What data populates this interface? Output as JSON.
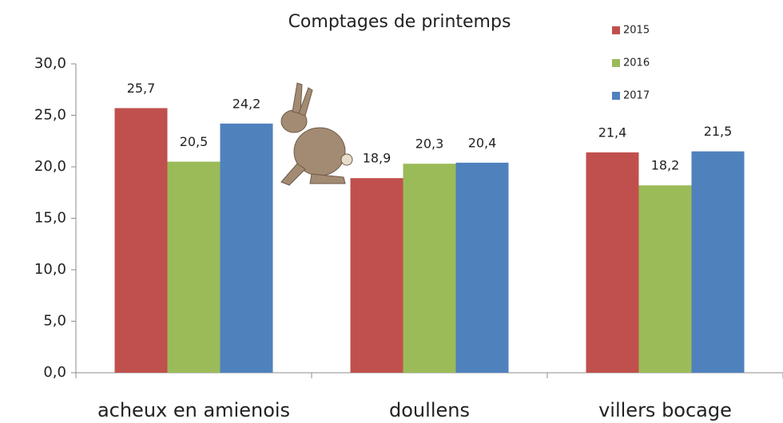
{
  "chart_data": {
    "type": "bar",
    "title": "Comptages de printemps",
    "categories": [
      "acheux en amienois",
      "doullens",
      "villers bocage"
    ],
    "series": [
      {
        "name": "2015",
        "color": "#c0504d",
        "values": [
          25.7,
          18.9,
          21.4
        ],
        "value_labels": [
          "25,7",
          "18,9",
          "21,4"
        ]
      },
      {
        "name": "2016",
        "color": "#9bbb59",
        "values": [
          20.5,
          20.3,
          18.2
        ],
        "value_labels": [
          "20,5",
          "20,3",
          "18,2"
        ]
      },
      {
        "name": "2017",
        "color": "#4f81bd",
        "values": [
          24.2,
          20.4,
          21.5
        ],
        "value_labels": [
          "24,2",
          "20,4",
          "21,5"
        ]
      }
    ],
    "ylim": [
      0,
      30
    ],
    "yticks": [
      {
        "value": 0,
        "label": "0,0"
      },
      {
        "value": 5,
        "label": "5,0"
      },
      {
        "value": 10,
        "label": "10,0"
      },
      {
        "value": 15,
        "label": "15,0"
      },
      {
        "value": 20,
        "label": "20,0"
      },
      {
        "value": 25,
        "label": "25,0"
      },
      {
        "value": 30,
        "label": "30,0"
      }
    ],
    "grid": false,
    "legend": "top-right"
  }
}
